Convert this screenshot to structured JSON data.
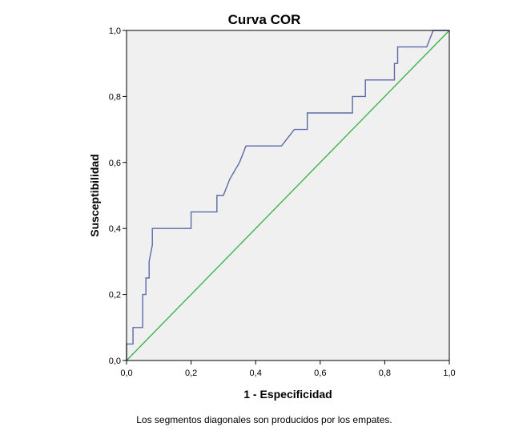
{
  "chart_data": {
    "type": "line",
    "title": "Curva COR",
    "xlabel": "1 - Especificidad",
    "ylabel": "Susceptibilidad",
    "footnote": "Los segmentos diagonales son producidos por los empates.",
    "xlim": [
      0,
      1
    ],
    "ylim": [
      0,
      1
    ],
    "xticks": [
      0,
      0.2,
      0.4,
      0.6,
      0.8,
      1
    ],
    "yticks": [
      0,
      0.2,
      0.4,
      0.6,
      0.8,
      1
    ],
    "tick_labels_x": [
      "0,0",
      "0,2",
      "0,4",
      "0,6",
      "0,8",
      "1,0"
    ],
    "tick_labels_y": [
      "0,0",
      "0,2",
      "0,4",
      "0,6",
      "0,8",
      "1,0"
    ],
    "grid": false,
    "plot_background": "#f0f0f0",
    "series": [
      {
        "color": "#5b6aa8",
        "x": [
          0,
          0,
          0.02,
          0.02,
          0.05,
          0.05,
          0.06,
          0.06,
          0.07,
          0.07,
          0.08,
          0.08,
          0.2,
          0.2,
          0.28,
          0.28,
          0.3,
          0.32,
          0.32,
          0.35,
          0.35,
          0.37,
          0.37,
          0.48,
          0.52,
          0.56,
          0.56,
          0.7,
          0.7,
          0.74,
          0.74,
          0.83,
          0.83,
          0.84,
          0.84,
          0.93,
          0.95,
          1.0
        ],
        "y": [
          0,
          0.05,
          0.05,
          0.1,
          0.1,
          0.2,
          0.2,
          0.25,
          0.25,
          0.3,
          0.35,
          0.4,
          0.4,
          0.45,
          0.45,
          0.5,
          0.5,
          0.55,
          0.55,
          0.6,
          0.6,
          0.65,
          0.65,
          0.65,
          0.7,
          0.7,
          0.75,
          0.75,
          0.8,
          0.8,
          0.85,
          0.85,
          0.9,
          0.9,
          0.95,
          0.95,
          1.0,
          1.0
        ]
      },
      {
        "color": "#3cb54a",
        "x": [
          0,
          1
        ],
        "y": [
          0,
          1
        ]
      }
    ]
  }
}
